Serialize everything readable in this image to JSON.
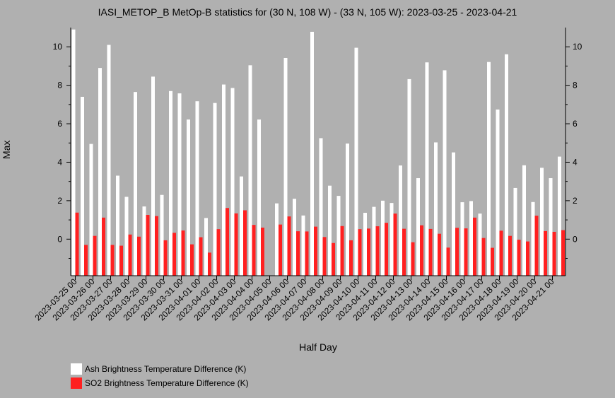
{
  "chart_data": {
    "type": "bar",
    "title": "IASI_METOP_B MetOp-B statistics for (30 N, 108 W) - (33 N, 105 W): 2023-03-25 - 2023-04-21",
    "xlabel": "Half Day",
    "ylabel": "Max",
    "ylim": [
      -1.9,
      11
    ],
    "yticks": [
      0,
      2,
      4,
      6,
      8,
      10
    ],
    "xtick_labels": [
      "2023-03-25 00",
      "2023-03-26 00",
      "2023-03-27 00",
      "2023-03-28 00",
      "2023-03-29 00",
      "2023-03-30 00",
      "2023-03-31 00",
      "2023-04-01 00",
      "2023-04-02 00",
      "2023-04-03 00",
      "2023-04-04 00",
      "2023-04-05 00",
      "2023-04-06 00",
      "2023-04-07 00",
      "2023-04-08 00",
      "2023-04-09 00",
      "2023-04-10 00",
      "2023-04-11 00",
      "2023-04-12 00",
      "2023-04-13 00",
      "2023-04-14 00",
      "2023-04-15 00",
      "2023-04-16 00",
      "2023-04-17 00",
      "2023-04-18 00",
      "2023-04-19 00",
      "2023-04-20 00",
      "2023-04-21 00"
    ],
    "bar_base": -1.9,
    "series": [
      {
        "name": "Ash Brightness Temperature Difference (K)",
        "color": "#ffffff",
        "values": [
          10.9,
          7.4,
          4.95,
          8.9,
          10.1,
          3.3,
          2.2,
          7.65,
          1.7,
          8.45,
          2.3,
          7.7,
          7.58,
          6.22,
          7.17,
          1.1,
          7.08,
          8.04,
          7.86,
          3.26,
          9.04,
          6.22,
          null,
          1.86,
          9.42,
          2.1,
          1.23,
          10.78,
          5.25,
          2.78,
          2.25,
          4.97,
          9.95,
          1.37,
          1.68,
          2.0,
          1.88,
          3.83,
          8.32,
          3.17,
          9.19,
          5.03,
          8.78,
          4.51,
          1.92,
          1.98,
          1.33,
          9.21,
          6.74,
          9.61,
          2.66,
          3.84,
          1.93,
          3.71,
          3.17,
          4.29
        ]
      },
      {
        "name": "SO2 Brightness Temperature Difference (K)",
        "color": "#ff2020",
        "values": [
          1.38,
          -0.3,
          0.17,
          1.12,
          -0.3,
          -0.34,
          0.24,
          0.13,
          1.26,
          1.2,
          -0.06,
          0.33,
          0.45,
          -0.27,
          0.1,
          -0.7,
          0.52,
          1.62,
          1.34,
          1.5,
          0.74,
          0.6,
          null,
          0.76,
          1.18,
          0.41,
          0.4,
          0.65,
          0.11,
          -0.2,
          0.68,
          -0.06,
          0.52,
          0.55,
          0.67,
          0.85,
          1.33,
          0.54,
          -0.16,
          0.72,
          0.53,
          0.28,
          -0.44,
          0.59,
          0.56,
          1.12,
          0.06,
          -0.45,
          0.44,
          0.17,
          -0.03,
          -0.12,
          1.22,
          0.42,
          0.38,
          0.47
        ]
      }
    ],
    "legend_position": "bottom-left",
    "grid": false
  }
}
